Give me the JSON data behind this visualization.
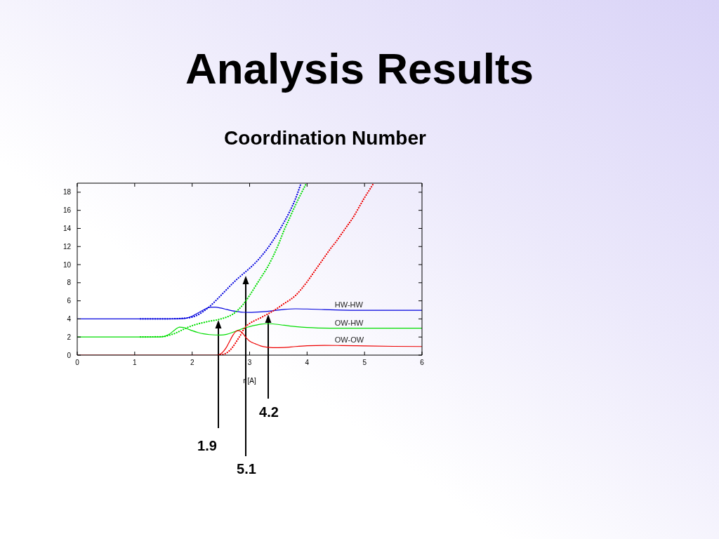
{
  "chart_data": {
    "type": "line",
    "title": "Analysis Results",
    "subtitle": "Coordination Number",
    "xlabel": "r [A]",
    "annotations": [
      "1.9",
      "5.1",
      "4.2"
    ],
    "xlim": [
      0,
      6
    ],
    "xticks": [
      0,
      1,
      2,
      3,
      4,
      5,
      6
    ],
    "ylim": [
      0,
      19
    ],
    "yticks": [
      0,
      2,
      4,
      6,
      8,
      10,
      12,
      14,
      16,
      18
    ],
    "marker": "none",
    "series": [
      {
        "name": "HW-HW",
        "color": "#0000dd",
        "line_style": "solid",
        "x": [
          0,
          1.5,
          1.8,
          1.9,
          2.0,
          2.1,
          2.2,
          2.3,
          2.4,
          2.5,
          2.6,
          2.7,
          2.8,
          2.9,
          3.0,
          3.2,
          3.4,
          3.6,
          3.8,
          4.0,
          4.3,
          4.6,
          5.0,
          5.5,
          6.0
        ],
        "values": [
          4.0,
          4.0,
          4.02,
          4.08,
          4.3,
          4.65,
          5.0,
          5.28,
          5.3,
          5.2,
          5.05,
          4.9,
          4.8,
          4.73,
          4.72,
          4.78,
          4.9,
          5.05,
          5.12,
          5.1,
          5.03,
          4.98,
          4.95,
          4.95,
          4.95
        ]
      },
      {
        "name": "OW-HW",
        "color": "#00dd00",
        "line_style": "solid",
        "x": [
          0,
          1.4,
          1.5,
          1.6,
          1.7,
          1.78,
          1.85,
          1.9,
          2.0,
          2.1,
          2.2,
          2.3,
          2.4,
          2.5,
          2.6,
          2.7,
          2.8,
          2.9,
          3.0,
          3.1,
          3.2,
          3.3,
          3.4,
          3.6,
          3.8,
          4.0,
          4.4,
          5.0,
          6.0
        ],
        "values": [
          2.0,
          2.0,
          2.05,
          2.3,
          2.8,
          3.1,
          3.05,
          2.95,
          2.7,
          2.5,
          2.35,
          2.27,
          2.23,
          2.22,
          2.3,
          2.5,
          2.75,
          2.98,
          3.15,
          3.3,
          3.42,
          3.47,
          3.45,
          3.3,
          3.15,
          3.05,
          2.98,
          2.97,
          2.97
        ]
      },
      {
        "name": "OW-OW",
        "color": "#ee0000",
        "line_style": "solid",
        "x": [
          0,
          2.4,
          2.45,
          2.5,
          2.55,
          2.6,
          2.65,
          2.7,
          2.75,
          2.8,
          2.85,
          2.9,
          2.95,
          3.0,
          3.1,
          3.2,
          3.3,
          3.4,
          3.6,
          3.8,
          4.0,
          4.3,
          4.6,
          5.0,
          5.5,
          6.0
        ],
        "values": [
          0,
          0,
          0.02,
          0.15,
          0.45,
          0.9,
          1.5,
          2.1,
          2.55,
          2.7,
          2.6,
          2.25,
          1.85,
          1.55,
          1.25,
          1.0,
          0.88,
          0.82,
          0.85,
          0.95,
          1.03,
          1.08,
          1.06,
          1.02,
          0.97,
          0.95
        ]
      },
      {
        "color": "#0000dd",
        "line_style": "dotted",
        "x": [
          1.1,
          1.5,
          1.7,
          1.8,
          1.9,
          2.0,
          2.1,
          2.2,
          2.3,
          2.4,
          2.5,
          2.6,
          2.7,
          2.8,
          2.9,
          3.0,
          3.1,
          3.2,
          3.3,
          3.4,
          3.5,
          3.6,
          3.7,
          3.8,
          3.89
        ],
        "values": [
          4.0,
          4.0,
          4.02,
          4.05,
          4.1,
          4.2,
          4.45,
          4.85,
          5.35,
          5.95,
          6.6,
          7.25,
          7.9,
          8.5,
          9.05,
          9.6,
          10.2,
          10.9,
          11.7,
          12.6,
          13.6,
          14.7,
          15.9,
          17.3,
          18.9
        ]
      },
      {
        "color": "#00dd00",
        "line_style": "dotted",
        "x": [
          1.1,
          1.5,
          1.6,
          1.7,
          1.8,
          1.9,
          2.0,
          2.1,
          2.2,
          2.3,
          2.4,
          2.5,
          2.6,
          2.7,
          2.8,
          2.9,
          3.0,
          3.1,
          3.2,
          3.3,
          3.4,
          3.5,
          3.6,
          3.7,
          3.8,
          3.9,
          3.98
        ],
        "values": [
          2.0,
          2.05,
          2.2,
          2.4,
          2.7,
          3.0,
          3.25,
          3.45,
          3.6,
          3.75,
          3.85,
          4.0,
          4.2,
          4.5,
          5.0,
          5.7,
          6.6,
          7.6,
          8.6,
          9.6,
          10.8,
          12.2,
          13.8,
          15.2,
          16.6,
          17.9,
          18.9
        ]
      },
      {
        "color": "#ee0000",
        "line_style": "dotted",
        "x": [
          2.45,
          2.55,
          2.6,
          2.65,
          2.7,
          2.75,
          2.8,
          2.85,
          2.9,
          3.0,
          3.1,
          3.2,
          3.3,
          3.4,
          3.5,
          3.6,
          3.7,
          3.8,
          3.9,
          4.0,
          4.1,
          4.2,
          4.3,
          4.4,
          4.5,
          4.6,
          4.7,
          4.8,
          4.9,
          5.0,
          5.1,
          5.15
        ],
        "values": [
          0,
          0.1,
          0.25,
          0.5,
          0.85,
          1.3,
          1.8,
          2.3,
          2.9,
          3.5,
          3.85,
          4.15,
          4.5,
          4.85,
          5.25,
          5.7,
          6.1,
          6.6,
          7.3,
          8.1,
          9.0,
          9.9,
          10.8,
          11.7,
          12.5,
          13.4,
          14.3,
          15.2,
          16.3,
          17.4,
          18.4,
          18.9
        ]
      }
    ]
  }
}
